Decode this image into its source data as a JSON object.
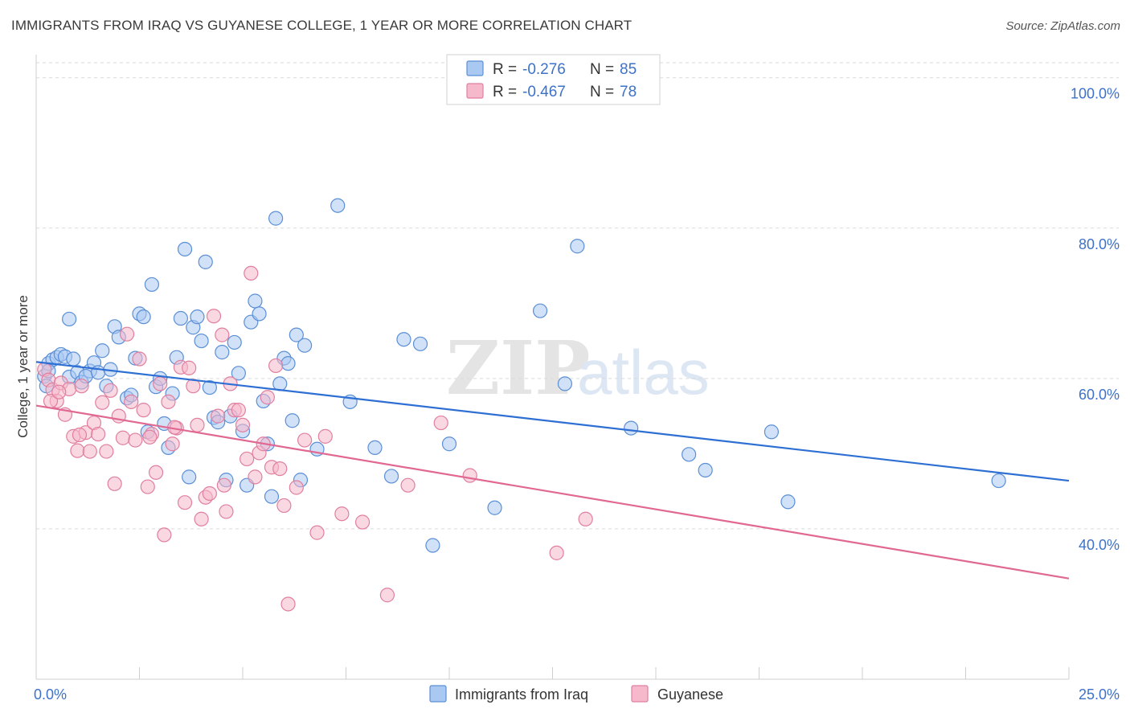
{
  "title": "IMMIGRANTS FROM IRAQ VS GUYANESE COLLEGE, 1 YEAR OR MORE CORRELATION CHART",
  "source": "Source: ZipAtlas.com",
  "watermark": {
    "bold": "ZIP",
    "light": "atlas"
  },
  "colors": {
    "blue_fill": "#a9c9f2",
    "blue_stroke": "#5b8fd6",
    "blue_line": "#2e6fd3",
    "pink_fill": "#f6b8cb",
    "pink_stroke": "#e07fa0",
    "pink_line": "#e06892",
    "axis_text": "#3d72c9",
    "grid": "#d9d9d9"
  },
  "legend_top": {
    "rows": [
      {
        "r_label": "R =",
        "r_value": "-0.276",
        "n_label": "N =",
        "n_value": "85",
        "series": "blue"
      },
      {
        "r_label": "R =",
        "r_value": "-0.467",
        "n_label": "N =",
        "n_value": "78",
        "series": "pink"
      }
    ]
  },
  "legend_bottom": [
    {
      "label": "Immigrants from Iraq",
      "series": "blue"
    },
    {
      "label": "Guyanese",
      "series": "pink"
    }
  ],
  "chart_data": {
    "type": "scatter",
    "title": "IMMIGRANTS FROM IRAQ VS GUYANESE COLLEGE, 1 YEAR OR MORE CORRELATION CHART",
    "xlabel": "",
    "ylabel": "College, 1 year or more",
    "xlim": [
      0,
      25
    ],
    "ylim": [
      20,
      102
    ],
    "x_tick_labels": [
      "0.0%",
      "25.0%"
    ],
    "y_ticks": [
      40,
      60,
      80,
      100
    ],
    "y_tick_labels": [
      "40.0%",
      "60.0%",
      "80.0%",
      "100.0%"
    ],
    "grid": true,
    "legend": "top-center",
    "series": [
      {
        "name": "Immigrants from Iraq",
        "color": "#a9c9f2",
        "r": -0.276,
        "n": 85,
        "trend": {
          "x": [
            0,
            25
          ],
          "y": [
            62.2,
            46.4
          ]
        },
        "points": [
          [
            0.2,
            60.3
          ],
          [
            0.3,
            62.0
          ],
          [
            0.4,
            62.5
          ],
          [
            0.3,
            61.0
          ],
          [
            0.5,
            62.8
          ],
          [
            0.6,
            63.2
          ],
          [
            0.7,
            62.9
          ],
          [
            0.8,
            60.2
          ],
          [
            0.9,
            62.6
          ],
          [
            1.0,
            60.8
          ],
          [
            1.1,
            59.5
          ],
          [
            1.3,
            61.0
          ],
          [
            0.8,
            67.9
          ],
          [
            1.2,
            60.3
          ],
          [
            1.4,
            62.1
          ],
          [
            1.5,
            60.8
          ],
          [
            1.6,
            63.7
          ],
          [
            1.7,
            59.0
          ],
          [
            1.8,
            61.2
          ],
          [
            1.9,
            66.9
          ],
          [
            2.0,
            65.5
          ],
          [
            2.2,
            57.4
          ],
          [
            2.3,
            57.8
          ],
          [
            2.4,
            62.7
          ],
          [
            2.5,
            68.6
          ],
          [
            2.6,
            68.2
          ],
          [
            2.7,
            52.9
          ],
          [
            2.8,
            72.5
          ],
          [
            2.9,
            58.9
          ],
          [
            3.0,
            60.0
          ],
          [
            3.1,
            54.0
          ],
          [
            3.2,
            50.8
          ],
          [
            3.3,
            58.0
          ],
          [
            3.4,
            62.8
          ],
          [
            3.5,
            68.0
          ],
          [
            3.6,
            77.2
          ],
          [
            3.7,
            46.9
          ],
          [
            3.8,
            66.8
          ],
          [
            3.9,
            68.2
          ],
          [
            4.0,
            65.0
          ],
          [
            4.1,
            75.5
          ],
          [
            4.2,
            58.8
          ],
          [
            4.3,
            54.8
          ],
          [
            4.4,
            54.2
          ],
          [
            4.5,
            63.5
          ],
          [
            4.6,
            46.5
          ],
          [
            4.7,
            55.0
          ],
          [
            4.8,
            64.8
          ],
          [
            4.9,
            60.7
          ],
          [
            5.0,
            53.0
          ],
          [
            5.1,
            45.8
          ],
          [
            5.2,
            67.5
          ],
          [
            5.3,
            70.3
          ],
          [
            5.4,
            68.6
          ],
          [
            5.5,
            57.0
          ],
          [
            5.6,
            51.3
          ],
          [
            5.7,
            44.3
          ],
          [
            5.8,
            81.3
          ],
          [
            5.9,
            59.3
          ],
          [
            6.0,
            62.7
          ],
          [
            6.1,
            62.0
          ],
          [
            6.2,
            54.4
          ],
          [
            6.3,
            65.8
          ],
          [
            6.4,
            46.5
          ],
          [
            6.5,
            64.4
          ],
          [
            6.8,
            50.6
          ],
          [
            7.3,
            83.0
          ],
          [
            7.6,
            56.9
          ],
          [
            8.2,
            50.8
          ],
          [
            8.6,
            47.0
          ],
          [
            8.9,
            65.2
          ],
          [
            9.6,
            37.8
          ],
          [
            9.3,
            64.6
          ],
          [
            10.0,
            51.3
          ],
          [
            11.1,
            42.8
          ],
          [
            12.2,
            69.0
          ],
          [
            12.8,
            59.3
          ],
          [
            13.1,
            77.6
          ],
          [
            14.4,
            53.4
          ],
          [
            15.8,
            49.9
          ],
          [
            16.2,
            47.8
          ],
          [
            17.8,
            52.9
          ],
          [
            18.2,
            43.6
          ],
          [
            23.3,
            46.4
          ],
          [
            0.25,
            59.0
          ]
        ]
      },
      {
        "name": "Guyanese",
        "color": "#f6b8cb",
        "r": -0.467,
        "n": 78,
        "trend": {
          "x": [
            0,
            25
          ],
          "y": [
            56.4,
            33.4
          ]
        },
        "points": [
          [
            0.2,
            61.2
          ],
          [
            0.3,
            59.8
          ],
          [
            0.4,
            58.5
          ],
          [
            0.5,
            57.0
          ],
          [
            0.6,
            59.4
          ],
          [
            0.7,
            55.2
          ],
          [
            0.8,
            58.6
          ],
          [
            0.9,
            52.3
          ],
          [
            1.0,
            50.4
          ],
          [
            1.1,
            59.0
          ],
          [
            1.2,
            52.8
          ],
          [
            1.3,
            50.3
          ],
          [
            1.4,
            54.1
          ],
          [
            1.5,
            52.6
          ],
          [
            1.6,
            56.8
          ],
          [
            1.7,
            50.3
          ],
          [
            1.8,
            58.4
          ],
          [
            1.9,
            46.0
          ],
          [
            2.0,
            55.0
          ],
          [
            2.1,
            52.1
          ],
          [
            2.2,
            65.9
          ],
          [
            2.3,
            56.9
          ],
          [
            2.4,
            51.8
          ],
          [
            2.5,
            62.6
          ],
          [
            2.6,
            55.8
          ],
          [
            2.7,
            45.6
          ],
          [
            2.8,
            52.6
          ],
          [
            2.9,
            47.5
          ],
          [
            3.0,
            59.3
          ],
          [
            3.1,
            39.2
          ],
          [
            3.2,
            56.9
          ],
          [
            3.3,
            51.3
          ],
          [
            3.4,
            53.4
          ],
          [
            3.5,
            61.5
          ],
          [
            3.6,
            43.5
          ],
          [
            3.7,
            61.4
          ],
          [
            3.8,
            59.0
          ],
          [
            3.9,
            53.8
          ],
          [
            4.0,
            41.3
          ],
          [
            4.1,
            44.2
          ],
          [
            4.2,
            44.7
          ],
          [
            4.3,
            68.3
          ],
          [
            4.4,
            55.0
          ],
          [
            4.5,
            65.8
          ],
          [
            4.6,
            42.3
          ],
          [
            4.7,
            59.3
          ],
          [
            4.8,
            55.8
          ],
          [
            4.9,
            55.8
          ],
          [
            5.0,
            53.8
          ],
          [
            5.1,
            49.3
          ],
          [
            5.2,
            74.0
          ],
          [
            5.3,
            46.9
          ],
          [
            5.4,
            50.1
          ],
          [
            5.5,
            51.3
          ],
          [
            5.6,
            57.5
          ],
          [
            5.7,
            48.2
          ],
          [
            5.8,
            61.7
          ],
          [
            5.9,
            48.0
          ],
          [
            6.0,
            43.1
          ],
          [
            6.1,
            30.0
          ],
          [
            6.3,
            45.5
          ],
          [
            6.5,
            51.8
          ],
          [
            6.8,
            39.5
          ],
          [
            7.0,
            52.3
          ],
          [
            7.4,
            42.0
          ],
          [
            7.9,
            40.9
          ],
          [
            8.5,
            31.2
          ],
          [
            9.0,
            45.8
          ],
          [
            9.8,
            54.1
          ],
          [
            10.5,
            47.1
          ],
          [
            12.6,
            36.8
          ],
          [
            13.3,
            41.3
          ],
          [
            0.35,
            57.0
          ],
          [
            0.55,
            58.2
          ],
          [
            1.05,
            52.5
          ],
          [
            3.35,
            53.5
          ],
          [
            4.55,
            45.8
          ],
          [
            2.75,
            52.2
          ]
        ]
      }
    ]
  }
}
